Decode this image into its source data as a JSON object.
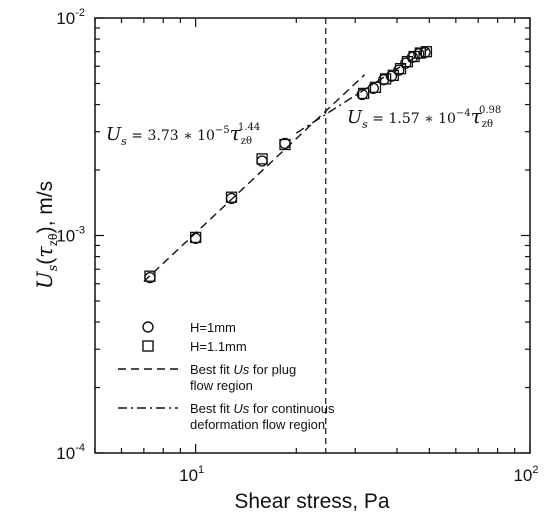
{
  "chart_data": {
    "type": "scatter",
    "xscale": "log",
    "yscale": "log",
    "xlim": [
      5,
      100
    ],
    "ylim": [
      0.0001,
      0.01
    ],
    "xlabel": "Shear stress, Pa",
    "ylabel": {
      "base": "U",
      "sub": "s",
      "paren_open": "(",
      "tau": "τ",
      "tau_sub": "zθ",
      "paren_close": ")",
      "unit": ", m/s"
    },
    "x_ticks": [
      {
        "value": 10,
        "base": "10",
        "exp": "1"
      },
      {
        "value": 100,
        "base": "10",
        "exp": "2"
      }
    ],
    "y_ticks": [
      {
        "value": 0.0001,
        "base": "10",
        "exp": "-4"
      },
      {
        "value": 0.001,
        "base": "10",
        "exp": "-3"
      },
      {
        "value": 0.01,
        "base": "10",
        "exp": "-2"
      }
    ],
    "vertical_line_x": 24.5,
    "series": [
      {
        "name": "H=1mm",
        "marker": "circle",
        "points": [
          [
            7.3,
            0.00064
          ],
          [
            10.0,
            0.00097
          ],
          [
            12.8,
            0.00148
          ],
          [
            15.8,
            0.0022
          ],
          [
            18.5,
            0.00265
          ],
          [
            31.5,
            0.00445
          ],
          [
            34.0,
            0.00475
          ],
          [
            36.5,
            0.0052
          ],
          [
            38.5,
            0.0054
          ],
          [
            40.5,
            0.00575
          ],
          [
            42.5,
            0.0062
          ],
          [
            44.5,
            0.0066
          ],
          [
            46.5,
            0.00685
          ],
          [
            48.5,
            0.00695
          ]
        ]
      },
      {
        "name": "H=1.1mm",
        "marker": "square",
        "points": [
          [
            7.3,
            0.00065
          ],
          [
            10.0,
            0.00098
          ],
          [
            12.8,
            0.0015
          ],
          [
            15.8,
            0.00225
          ],
          [
            18.5,
            0.00262
          ],
          [
            31.8,
            0.0045
          ],
          [
            34.5,
            0.0048
          ],
          [
            37.0,
            0.00525
          ],
          [
            39.0,
            0.00545
          ],
          [
            41.0,
            0.00585
          ],
          [
            43.0,
            0.0063
          ],
          [
            45.0,
            0.00665
          ],
          [
            47.0,
            0.0069
          ],
          [
            49.0,
            0.007
          ]
        ]
      }
    ],
    "fits": [
      {
        "name": "Best fit Us for plug flow region",
        "style": "dashed",
        "coef": 3.73e-05,
        "exponent": 1.44,
        "x_range": [
          7.0,
          32.0
        ]
      },
      {
        "name": "Best fit Us for continuous deformation flow region",
        "style": "dashdot",
        "coef": 0.000157,
        "exponent": 0.98,
        "x_range": [
          20.0,
          50.0
        ]
      }
    ],
    "equations": [
      {
        "lhs": "U",
        "lhs_sub": "s",
        "eq": " = ",
        "coef": "3.73",
        "times": " ∗ ",
        "pow_base": "10",
        "pow_exp": "−5",
        "tau": "τ",
        "tau_sub": "zθ",
        "tau_exp": "1.44"
      },
      {
        "lhs": "U",
        "lhs_sub": "s",
        "eq": " = ",
        "coef": "1.57",
        "times": " ∗ ",
        "pow_base": "10",
        "pow_exp": "−4",
        "tau": "τ",
        "tau_sub": "zθ",
        "tau_exp": "0.98"
      }
    ],
    "legend": {
      "placement": "lower-left",
      "entries": [
        {
          "kind": "circle",
          "lines": [
            "H=1mm"
          ]
        },
        {
          "kind": "square",
          "lines": [
            "H=1.1mm"
          ]
        },
        {
          "kind": "dashed",
          "line1_pre": "Best fit ",
          "line1_italic": "Us",
          "line1_post": " for plug",
          "line2": "flow region"
        },
        {
          "kind": "dashdot",
          "line1_pre": "Best fit ",
          "line1_italic": "Us",
          "line1_post": " for continuous",
          "line2": "deformation flow region"
        }
      ]
    },
    "grid": false
  }
}
